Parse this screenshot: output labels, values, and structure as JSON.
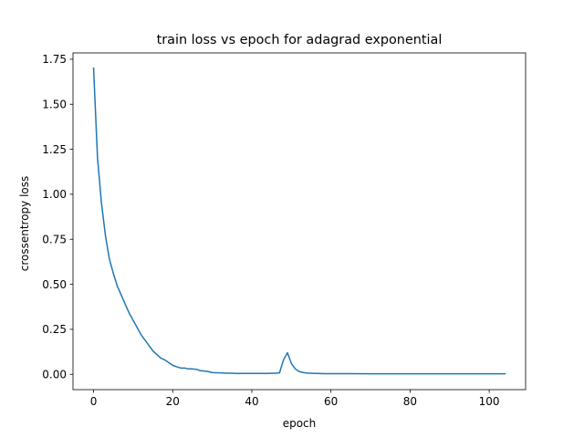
{
  "chart_data": {
    "type": "line",
    "title": "train loss vs epoch for adagrad exponential",
    "xlabel": "epoch",
    "ylabel": "crossentropy loss",
    "xlim": [
      -5.2,
      109.2
    ],
    "ylim": [
      -0.085,
      1.785
    ],
    "xticks": [
      0,
      20,
      40,
      60,
      80,
      100
    ],
    "xtick_labels": [
      "0",
      "20",
      "40",
      "60",
      "80",
      "100"
    ],
    "yticks": [
      0.0,
      0.25,
      0.5,
      0.75,
      1.0,
      1.25,
      1.5,
      1.75
    ],
    "ytick_labels": [
      "0.00",
      "0.25",
      "0.50",
      "0.75",
      "1.00",
      "1.25",
      "1.50",
      "1.75"
    ],
    "grid": false,
    "line_color": "#1f77b4",
    "series": [
      {
        "x": [
          0,
          1,
          2,
          3,
          4,
          5,
          6,
          7,
          8,
          9,
          10,
          11,
          12,
          13,
          14,
          15,
          16,
          17,
          18,
          19,
          20,
          21,
          22,
          23,
          24,
          25,
          26,
          27,
          28,
          29,
          30,
          31,
          32,
          33,
          34,
          35,
          36,
          37,
          38,
          39,
          40,
          41,
          42,
          43,
          44,
          45,
          46,
          47,
          48,
          49,
          50,
          51,
          52,
          53,
          54,
          55,
          56,
          57,
          58,
          59,
          60,
          62,
          65,
          70,
          75,
          80,
          85,
          90,
          95,
          100,
          104
        ],
        "y": [
          1.7,
          1.2,
          0.95,
          0.77,
          0.64,
          0.56,
          0.49,
          0.44,
          0.39,
          0.34,
          0.3,
          0.26,
          0.22,
          0.19,
          0.16,
          0.13,
          0.11,
          0.09,
          0.08,
          0.065,
          0.05,
          0.042,
          0.035,
          0.035,
          0.03,
          0.03,
          0.028,
          0.02,
          0.018,
          0.015,
          0.01,
          0.009,
          0.008,
          0.007,
          0.006,
          0.006,
          0.005,
          0.005,
          0.005,
          0.005,
          0.005,
          0.005,
          0.005,
          0.005,
          0.005,
          0.006,
          0.006,
          0.008,
          0.08,
          0.12,
          0.06,
          0.03,
          0.015,
          0.01,
          0.007,
          0.006,
          0.005,
          0.005,
          0.004,
          0.004,
          0.004,
          0.004,
          0.004,
          0.003,
          0.003,
          0.003,
          0.003,
          0.003,
          0.003,
          0.003,
          0.003
        ]
      }
    ]
  }
}
